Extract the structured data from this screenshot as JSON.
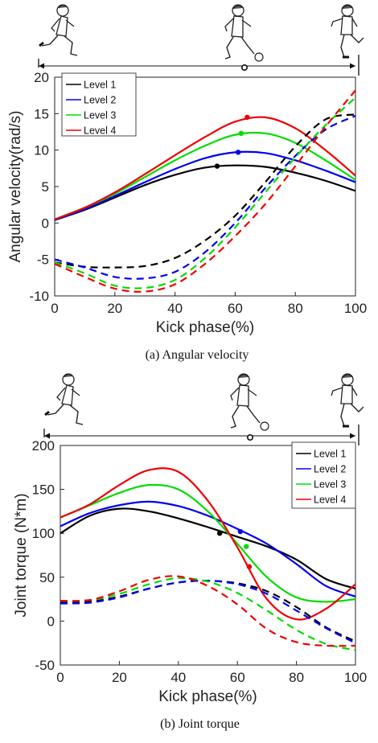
{
  "figure": {
    "colors": {
      "Level 1": "#000000",
      "Level 2": "#0000ee",
      "Level 3": "#00dd00",
      "Level 4": "#ee0000"
    },
    "icons": [
      "kicker-approach-icon",
      "kicker-contact-icon",
      "kicker-follow-through-icon"
    ]
  },
  "chart_data": [
    {
      "type": "line",
      "caption": "(a) Angular velocity",
      "xlabel": "Kick phase(%)",
      "ylabel": "Angular velocity(rad/s)",
      "xlim": [
        0,
        100
      ],
      "ylim": [
        -10,
        20
      ],
      "xticks": [
        "0",
        "20",
        "40",
        "60",
        "80",
        "100"
      ],
      "yticks": [
        "-10",
        "-5",
        "0",
        "5",
        "10",
        "15",
        "20"
      ],
      "legend": [
        "Level 1",
        "Level 2",
        "Level 3",
        "Level 4"
      ],
      "legend_position": "top-left",
      "x": [
        0,
        10,
        20,
        30,
        40,
        50,
        60,
        70,
        80,
        90,
        100
      ],
      "series": [
        {
          "name": "Level 1",
          "style": "solid",
          "values": [
            0.4,
            1.8,
            3.5,
            5.2,
            6.6,
            7.6,
            7.9,
            7.7,
            6.9,
            5.8,
            4.4
          ]
        },
        {
          "name": "Level 2",
          "style": "solid",
          "values": [
            0.4,
            1.9,
            3.7,
            5.6,
            7.4,
            8.9,
            9.7,
            9.6,
            8.6,
            7.2,
            5.6
          ]
        },
        {
          "name": "Level 3",
          "style": "solid",
          "values": [
            0.5,
            2.1,
            4.0,
            6.3,
            8.6,
            10.6,
            12.1,
            12.3,
            11.0,
            8.6,
            5.9
          ]
        },
        {
          "name": "Level 4",
          "style": "solid",
          "values": [
            0.5,
            2.1,
            4.2,
            6.7,
            9.3,
            11.8,
            13.9,
            14.5,
            13.0,
            10.0,
            6.5
          ]
        },
        {
          "name": "Level 1",
          "style": "dashed",
          "values": [
            -5.4,
            -6.0,
            -6.1,
            -5.9,
            -4.8,
            -2.4,
            1.0,
            5.6,
            10.5,
            14.2,
            14.9
          ]
        },
        {
          "name": "Level 2",
          "style": "dashed",
          "values": [
            -5.0,
            -6.1,
            -7.4,
            -7.6,
            -6.7,
            -4.0,
            0.0,
            4.8,
            9.2,
            12.8,
            14.7
          ]
        },
        {
          "name": "Level 3",
          "style": "dashed",
          "values": [
            -5.4,
            -6.9,
            -8.6,
            -8.9,
            -7.8,
            -4.8,
            -0.6,
            4.2,
            9.0,
            13.4,
            17.2
          ]
        },
        {
          "name": "Level 4",
          "style": "dashed",
          "values": [
            -5.6,
            -7.4,
            -9.0,
            -9.4,
            -8.4,
            -5.6,
            -1.8,
            2.6,
            7.8,
            13.2,
            18.2
          ]
        }
      ],
      "markers": [
        {
          "series": "Level 1",
          "x": 54,
          "y": 7.8
        },
        {
          "series": "Level 2",
          "x": 61,
          "y": 9.7
        },
        {
          "series": "Level 3",
          "x": 62,
          "y": 12.3
        },
        {
          "series": "Level 4",
          "x": 64,
          "y": 14.5
        }
      ]
    },
    {
      "type": "line",
      "caption": "(b) Joint torque",
      "xlabel": "Kick phase(%)",
      "ylabel": "Joint torque (N*m)",
      "xlim": [
        0,
        100
      ],
      "ylim": [
        -50,
        200
      ],
      "xticks": [
        "0",
        "20",
        "40",
        "60",
        "80",
        "100"
      ],
      "yticks": [
        "-50",
        "0",
        "50",
        "100",
        "150",
        "200"
      ],
      "legend": [
        "Level 1",
        "Level 2",
        "Level 3",
        "Level 4"
      ],
      "legend_position": "top-right",
      "x": [
        0,
        10,
        20,
        30,
        40,
        50,
        60,
        70,
        80,
        90,
        100
      ],
      "series": [
        {
          "name": "Level 1",
          "style": "solid",
          "values": [
            100,
            120,
            128,
            125,
            117,
            107,
            96,
            85,
            70,
            48,
            37
          ]
        },
        {
          "name": "Level 2",
          "style": "solid",
          "values": [
            108,
            123,
            132,
            136,
            131,
            120,
            105,
            88,
            65,
            40,
            28
          ]
        },
        {
          "name": "Level 3",
          "style": "solid",
          "values": [
            118,
            132,
            146,
            155,
            150,
            125,
            88,
            50,
            27,
            22,
            25
          ]
        },
        {
          "name": "Level 4",
          "style": "solid",
          "values": [
            118,
            133,
            155,
            172,
            170,
            137,
            84,
            25,
            2,
            14,
            42
          ]
        },
        {
          "name": "Level 1",
          "style": "dashed",
          "values": [
            21,
            22,
            28,
            37,
            44,
            46,
            43,
            34,
            16,
            -7,
            -23
          ]
        },
        {
          "name": "Level 2",
          "style": "dashed",
          "values": [
            20,
            21,
            27,
            37,
            44,
            46,
            42,
            31,
            12,
            -8,
            -25
          ]
        },
        {
          "name": "Level 3",
          "style": "dashed",
          "values": [
            23,
            24,
            31,
            42,
            49,
            45,
            32,
            12,
            -10,
            -26,
            -33
          ]
        },
        {
          "name": "Level 4",
          "style": "dashed",
          "values": [
            23,
            24,
            34,
            47,
            51,
            40,
            19,
            -9,
            -24,
            -28,
            -28
          ]
        }
      ],
      "markers": [
        {
          "series": "Level 1",
          "x": 54,
          "y": 100
        },
        {
          "series": "Level 2",
          "x": 61,
          "y": 102
        },
        {
          "series": "Level 3",
          "x": 63,
          "y": 85
        },
        {
          "series": "Level 4",
          "x": 64,
          "y": 62
        }
      ]
    }
  ]
}
